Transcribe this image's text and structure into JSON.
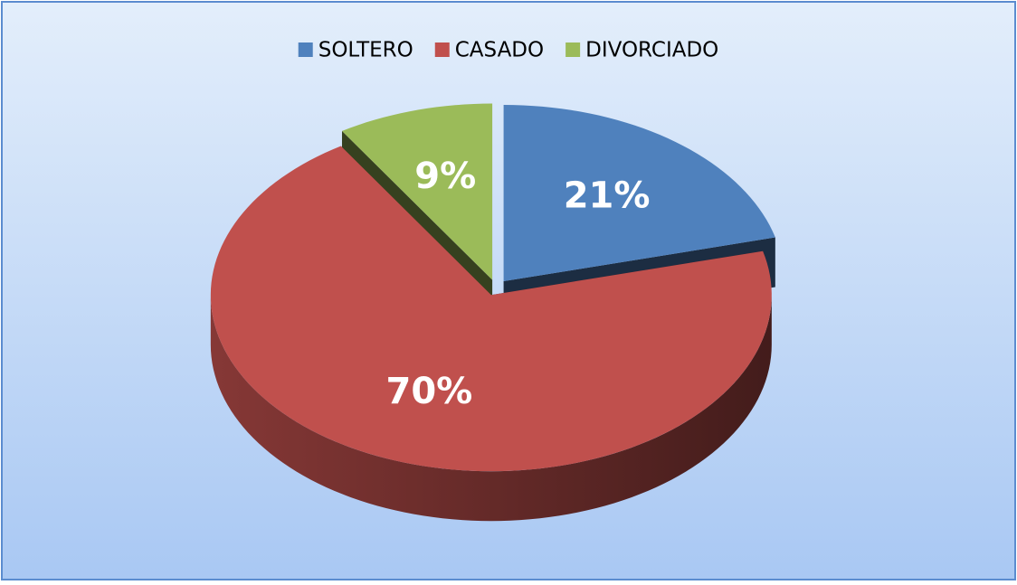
{
  "chart_data": {
    "type": "pie",
    "categories": [
      "SOLTERO",
      "CASADO",
      "DIVORCIADO"
    ],
    "values": [
      21,
      70,
      9
    ],
    "value_labels": [
      "21%",
      "70%",
      "9%"
    ],
    "colors": [
      "#4f81bd",
      "#c0504d",
      "#9bbb59"
    ],
    "legend": "top"
  }
}
